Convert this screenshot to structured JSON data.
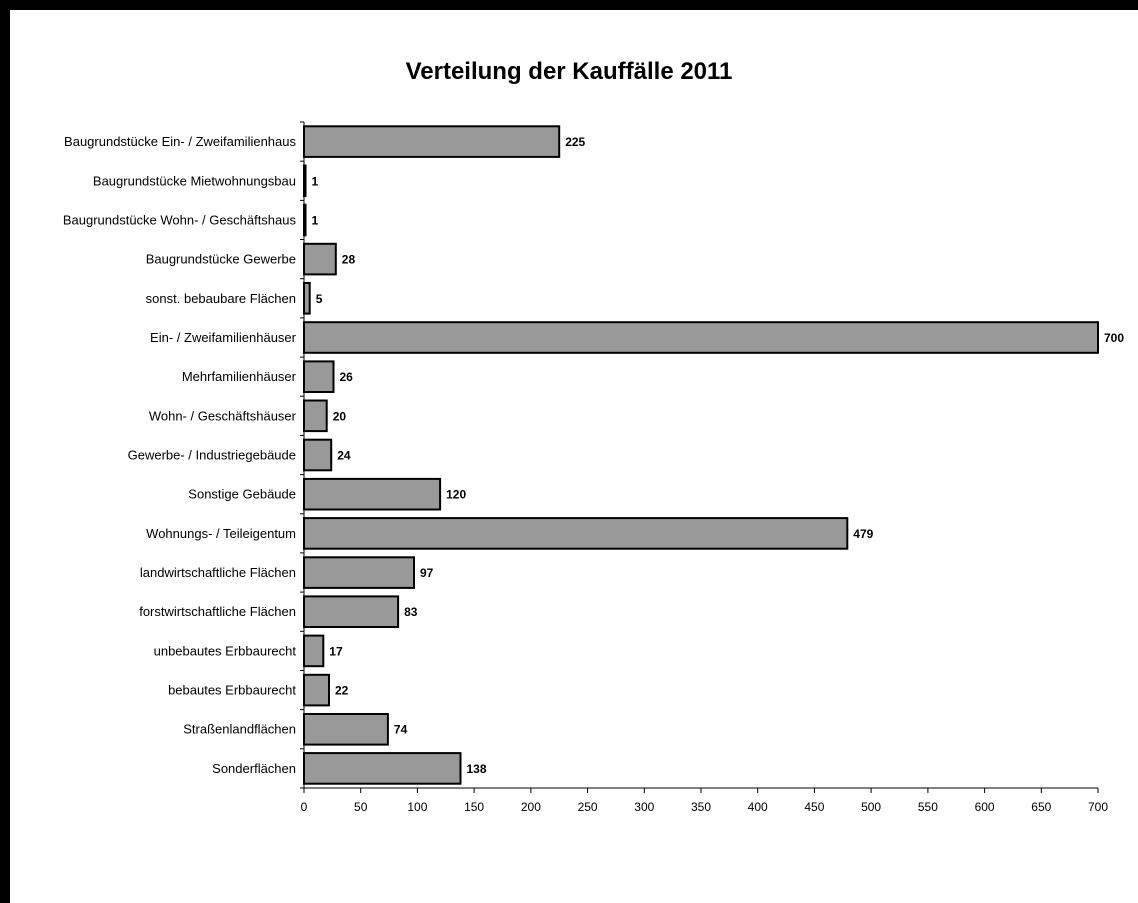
{
  "chart_data": {
    "type": "bar",
    "orientation": "horizontal",
    "title": "Verteilung der Kauffälle 2011",
    "xlabel": "",
    "ylabel": "",
    "xlim": [
      0,
      700
    ],
    "x_ticks": [
      "0",
      "50",
      "100",
      "150",
      "200",
      "250",
      "300",
      "350",
      "400",
      "450",
      "500",
      "550",
      "600",
      "650",
      "700"
    ],
    "grid": false,
    "legend": "none",
    "bar_color": "#999999",
    "categories": [
      "Baugrundstücke Ein- / Zweifamilienhaus",
      "Baugrundstücke Mietwohnungsbau",
      "Baugrundstücke Wohn- / Geschäftshaus",
      "Baugrundstücke Gewerbe",
      "sonst. bebaubare Flächen",
      "Ein- / Zweifamilienhäuser",
      "Mehrfamilienhäuser",
      "Wohn- / Geschäftshäuser",
      "Gewerbe- / Industriegebäude",
      "Sonstige Gebäude",
      "Wohnungs- / Teileigentum",
      "landwirtschaftliche Flächen",
      "forstwirtschaftliche Flächen",
      "unbebautes Erbbaurecht",
      "bebautes Erbbaurecht",
      "Straßenlandflächen",
      "Sonderflächen"
    ],
    "values": [
      225,
      1,
      1,
      28,
      5,
      700,
      26,
      20,
      24,
      120,
      479,
      97,
      83,
      17,
      22,
      74,
      138
    ],
    "data_labels": [
      "225",
      "1",
      "1",
      "28",
      "5",
      "700",
      "26",
      "20",
      "24",
      "120",
      "479",
      "97",
      "83",
      "17",
      "22",
      "74",
      "138"
    ]
  }
}
